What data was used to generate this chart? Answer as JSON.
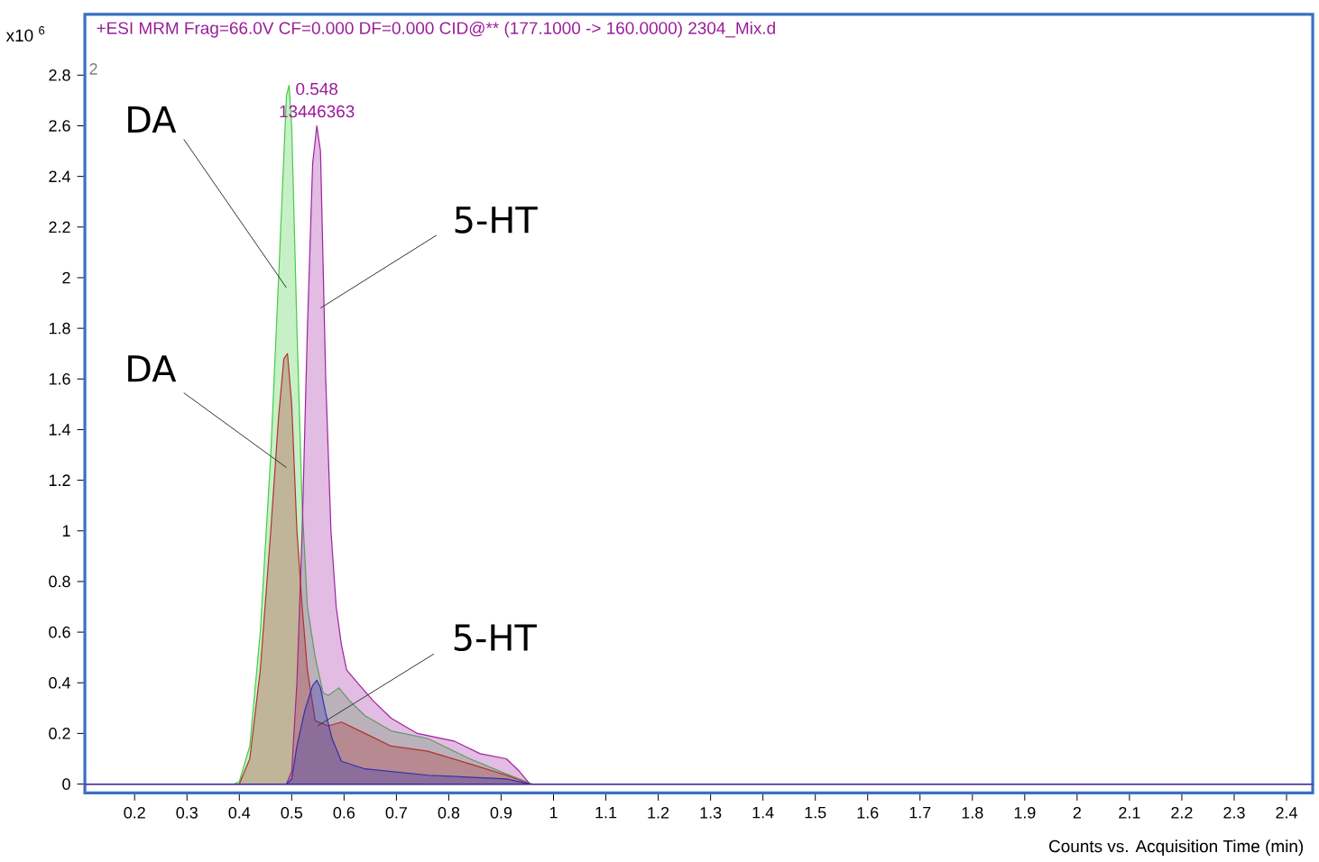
{
  "chart_data": {
    "type": "area",
    "title": "+ESI  MRM  Frag=66.0V  CF=0.000  DF=0.000  CID@**  (177.1000  ->  160.0000)  2304_Mix.d",
    "xlabel": "Counts vs. Acquisition Time (min)",
    "ylabel": "x10 $^{6}$",
    "xlim": [
      0.105,
      2.45
    ],
    "ylim": [
      -0.035,
      3.04
    ],
    "xticks": [
      0.2,
      0.3,
      0.4,
      0.5,
      0.6,
      0.7,
      0.8,
      0.9,
      1,
      1.1,
      1.2,
      1.3,
      1.4,
      1.5,
      1.6,
      1.7,
      1.8,
      1.9,
      2,
      2.1,
      2.2,
      2.3,
      2.4
    ],
    "yticks": [
      0,
      0.2,
      0.4,
      0.6,
      0.8,
      1,
      1.2,
      1.4,
      1.6,
      1.8,
      2,
      2.2,
      2.4,
      2.6,
      2.8
    ],
    "marker": "none",
    "series": [
      {
        "color": "#44cc44",
        "x": [
          0.105,
          0.39,
          0.4,
          0.42,
          0.44,
          0.46,
          0.475,
          0.49,
          0.495,
          0.5,
          0.51,
          0.52,
          0.53,
          0.545,
          0.56,
          0.57,
          0.59,
          0.61,
          0.64,
          0.69,
          0.76,
          0.84,
          0.91,
          0.96,
          2.45
        ],
        "values": [
          0,
          0,
          0.01,
          0.15,
          0.6,
          1.3,
          2.0,
          2.72,
          2.76,
          2.6,
          1.8,
          1.1,
          0.7,
          0.5,
          0.36,
          0.35,
          0.38,
          0.33,
          0.27,
          0.21,
          0.18,
          0.1,
          0.04,
          0,
          0
        ]
      },
      {
        "color": "#a020a0",
        "x": [
          0.105,
          0.49,
          0.5,
          0.51,
          0.52,
          0.53,
          0.54,
          0.548,
          0.555,
          0.565,
          0.575,
          0.585,
          0.595,
          0.605,
          0.63,
          0.655,
          0.69,
          0.74,
          0.81,
          0.86,
          0.91,
          0.935,
          0.955,
          2.45
        ],
        "values": [
          0,
          0,
          0.05,
          0.4,
          1.0,
          1.8,
          2.45,
          2.6,
          2.5,
          1.6,
          1.0,
          0.7,
          0.55,
          0.45,
          0.39,
          0.33,
          0.26,
          0.2,
          0.17,
          0.12,
          0.1,
          0.05,
          0,
          0
        ]
      },
      {
        "color": "#b03030",
        "x": [
          0.105,
          0.4,
          0.42,
          0.44,
          0.46,
          0.475,
          0.485,
          0.492,
          0.5,
          0.51,
          0.52,
          0.53,
          0.545,
          0.57,
          0.595,
          0.64,
          0.69,
          0.76,
          0.84,
          0.91,
          0.955,
          2.45
        ],
        "values": [
          0,
          0,
          0.1,
          0.45,
          1.0,
          1.45,
          1.68,
          1.7,
          1.5,
          1.0,
          0.7,
          0.45,
          0.25,
          0.23,
          0.245,
          0.2,
          0.15,
          0.13,
          0.08,
          0.035,
          0,
          0
        ]
      },
      {
        "color": "#3030b0",
        "x": [
          0.105,
          0.49,
          0.5,
          0.51,
          0.525,
          0.54,
          0.548,
          0.555,
          0.565,
          0.577,
          0.595,
          0.64,
          0.76,
          0.91,
          0.955,
          2.45
        ],
        "values": [
          0,
          0,
          0.02,
          0.15,
          0.29,
          0.39,
          0.41,
          0.38,
          0.28,
          0.18,
          0.09,
          0.06,
          0.035,
          0.02,
          0,
          0
        ]
      }
    ],
    "annotations": [
      {
        "text": "0.548",
        "x": 0.548,
        "y": 2.6
      },
      {
        "text": "13446363",
        "x": 0.548,
        "y": 2.6
      },
      {
        "text": "5-HT",
        "x": 0.555,
        "y": 1.88
      },
      {
        "text": "5-HT",
        "x": 0.55,
        "y": 0.23
      },
      "DA",
      "DA",
      "2"
    ]
  }
}
